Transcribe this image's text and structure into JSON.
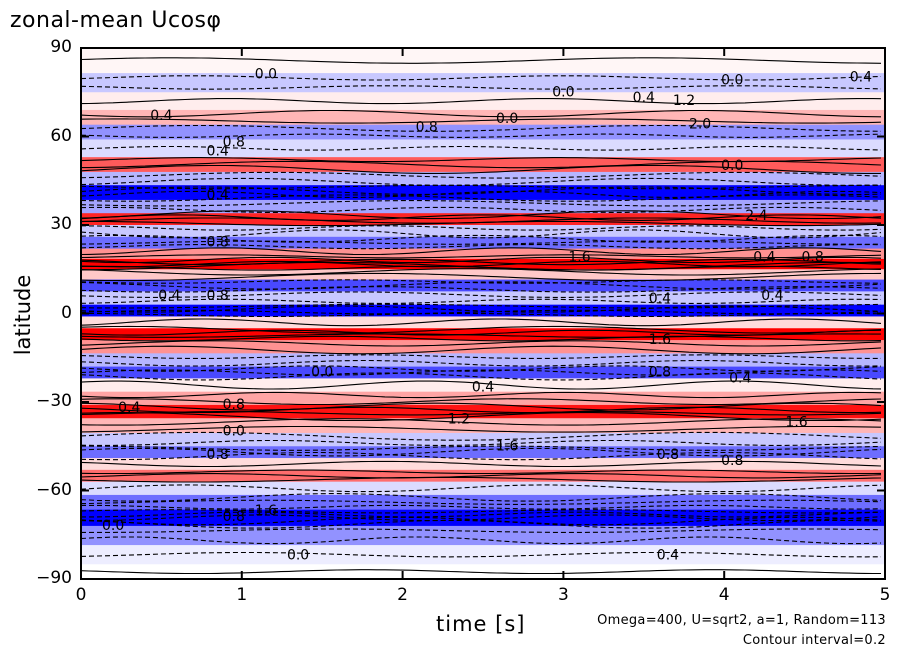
{
  "chart_data": {
    "type": "heatmap",
    "title": "zonal-mean Ucosφ",
    "xlabel": "time [s]",
    "ylabel": "latitude",
    "xlim": [
      0,
      5
    ],
    "ylim": [
      -90,
      90
    ],
    "xticks": [
      "0",
      "1",
      "2",
      "3",
      "4",
      "5"
    ],
    "yticks": [
      "90",
      "60",
      "30",
      "0",
      "−30",
      "−60",
      "−90"
    ],
    "x_tick_values": [
      0,
      1,
      2,
      3,
      4,
      5
    ],
    "y_tick_values": [
      90,
      60,
      30,
      0,
      -30,
      -60,
      -90
    ],
    "contour_interval": 0.2,
    "colormap": {
      "positive": "#ff0000",
      "negative": "#0000ff",
      "zero": "#ffffff"
    },
    "latitude_bands": [
      {
        "lat": 85,
        "value": 0.05
      },
      {
        "lat": 78,
        "value": -0.3
      },
      {
        "lat": 72,
        "value": 0.1
      },
      {
        "lat": 66,
        "value": 0.4
      },
      {
        "lat": 62,
        "value": -0.6
      },
      {
        "lat": 56,
        "value": -0.2
      },
      {
        "lat": 50,
        "value": 0.9
      },
      {
        "lat": 46,
        "value": -0.4
      },
      {
        "lat": 41,
        "value": -1.4
      },
      {
        "lat": 36,
        "value": -0.5
      },
      {
        "lat": 32,
        "value": 1.2
      },
      {
        "lat": 28,
        "value": -0.3
      },
      {
        "lat": 24,
        "value": -0.8
      },
      {
        "lat": 20,
        "value": 0.6
      },
      {
        "lat": 17,
        "value": 1.6
      },
      {
        "lat": 13,
        "value": 0.3
      },
      {
        "lat": 10,
        "value": -1.0
      },
      {
        "lat": 5,
        "value": -0.3
      },
      {
        "lat": 1,
        "value": -1.4
      },
      {
        "lat": -3,
        "value": 0.2
      },
      {
        "lat": -7,
        "value": 1.4
      },
      {
        "lat": -11,
        "value": 0.6
      },
      {
        "lat": -16,
        "value": -0.4
      },
      {
        "lat": -20,
        "value": -1.0
      },
      {
        "lat": -24,
        "value": 0.1
      },
      {
        "lat": -29,
        "value": 0.5
      },
      {
        "lat": -33,
        "value": 1.3
      },
      {
        "lat": -38,
        "value": 0.4
      },
      {
        "lat": -43,
        "value": -0.3
      },
      {
        "lat": -47,
        "value": -0.8
      },
      {
        "lat": -51,
        "value": 0.2
      },
      {
        "lat": -55,
        "value": 0.8
      },
      {
        "lat": -59,
        "value": -0.2
      },
      {
        "lat": -64,
        "value": -0.8
      },
      {
        "lat": -69,
        "value": -1.6
      },
      {
        "lat": -75,
        "value": -0.6
      },
      {
        "lat": -82,
        "value": -0.1
      },
      {
        "lat": -88,
        "value": 0.0
      }
    ],
    "contour_labels": [
      {
        "t": 1.15,
        "lat": 81,
        "text": "0.0"
      },
      {
        "t": 4.05,
        "lat": 79,
        "text": "0.0"
      },
      {
        "t": 4.85,
        "lat": 80,
        "text": "0.4"
      },
      {
        "t": 3.0,
        "lat": 75,
        "text": "0.0"
      },
      {
        "t": 3.5,
        "lat": 73,
        "text": "0.4"
      },
      {
        "t": 3.75,
        "lat": 72,
        "text": "1.2"
      },
      {
        "t": 0.5,
        "lat": 67,
        "text": "0.4"
      },
      {
        "t": 2.15,
        "lat": 63,
        "text": "0.8"
      },
      {
        "t": 2.65,
        "lat": 66,
        "text": "0.0"
      },
      {
        "t": 3.85,
        "lat": 64,
        "text": "2.0"
      },
      {
        "t": 0.95,
        "lat": 58,
        "text": "0.8"
      },
      {
        "t": 0.85,
        "lat": 55,
        "text": "0.4"
      },
      {
        "t": 4.05,
        "lat": 50,
        "text": "0.0"
      },
      {
        "t": 0.85,
        "lat": 40,
        "text": "0.4"
      },
      {
        "t": 4.2,
        "lat": 33,
        "text": "2.4"
      },
      {
        "t": 0.85,
        "lat": 24,
        "text": "0.8"
      },
      {
        "t": 3.1,
        "lat": 19,
        "text": "1.6"
      },
      {
        "t": 4.25,
        "lat": 19,
        "text": "0.4"
      },
      {
        "t": 4.55,
        "lat": 19,
        "text": "0.8"
      },
      {
        "t": 0.55,
        "lat": 6,
        "text": "0.4"
      },
      {
        "t": 0.85,
        "lat": 6,
        "text": "0.8"
      },
      {
        "t": 3.6,
        "lat": 5,
        "text": "0.4"
      },
      {
        "t": 4.3,
        "lat": 6,
        "text": "0.4"
      },
      {
        "t": 3.6,
        "lat": -9,
        "text": "1.6"
      },
      {
        "t": 1.5,
        "lat": -20,
        "text": "0.0"
      },
      {
        "t": 2.5,
        "lat": -25,
        "text": "0.4"
      },
      {
        "t": 3.6,
        "lat": -20,
        "text": "0.8"
      },
      {
        "t": 4.1,
        "lat": -22,
        "text": "0.4"
      },
      {
        "t": 0.3,
        "lat": -32,
        "text": "0.4"
      },
      {
        "t": 0.95,
        "lat": -31,
        "text": "0.8"
      },
      {
        "t": 2.35,
        "lat": -36,
        "text": "1.2"
      },
      {
        "t": 4.45,
        "lat": -37,
        "text": "1.6"
      },
      {
        "t": 0.95,
        "lat": -40,
        "text": "0.0"
      },
      {
        "t": 2.65,
        "lat": -45,
        "text": "1.6"
      },
      {
        "t": 0.85,
        "lat": -48,
        "text": "0.8"
      },
      {
        "t": 3.65,
        "lat": -48,
        "text": "0.8"
      },
      {
        "t": 4.05,
        "lat": -50,
        "text": "0.8"
      },
      {
        "t": 0.95,
        "lat": -69,
        "text": "0.8"
      },
      {
        "t": 1.15,
        "lat": -67,
        "text": "1.6"
      },
      {
        "t": 0.2,
        "lat": -72,
        "text": "0.0"
      },
      {
        "t": 1.35,
        "lat": -82,
        "text": "0.0"
      },
      {
        "t": 3.65,
        "lat": -82,
        "text": "0.4"
      }
    ]
  },
  "figure": {
    "title": "zonal-mean Ucosφ",
    "xlabel": "time [s]",
    "ylabel": "latitude",
    "note1": "Omega=400, U=sqrt2, a=1, Random=113",
    "note2": "Contour interval=0.2"
  }
}
